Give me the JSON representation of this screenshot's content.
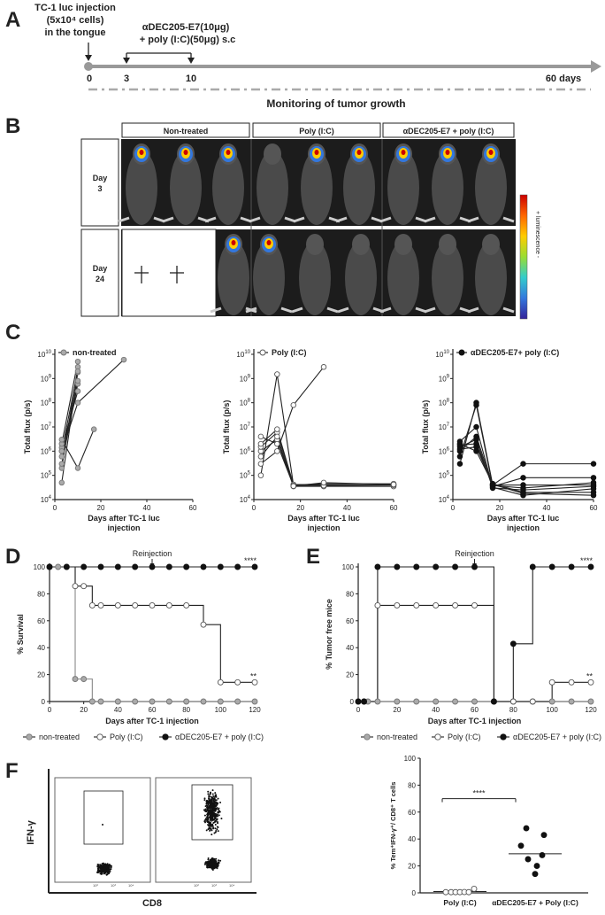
{
  "panels": {
    "A": "A",
    "B": "B",
    "C": "C",
    "D": "D",
    "E": "E",
    "F": "F"
  },
  "a": {
    "injection_lines": [
      "TC-1 luc injection",
      "(5x10⁴ cells)",
      "in the tongue"
    ],
    "treatment_lines": [
      "αDEC205-E7(10μg)",
      "+ poly (I:C)(50μg) s.c"
    ],
    "ticks": [
      "0",
      "3",
      "10",
      "60 days"
    ],
    "monitoring": "Monitoring of tumor growth"
  },
  "b": {
    "groups": [
      "Non-treated",
      "Poly (I:C)",
      "αDEC205-E7 + poly (I:C)"
    ],
    "rows": [
      [
        "Day",
        "3"
      ],
      [
        "Day",
        "24"
      ]
    ],
    "scale_label": "+ luminescence -",
    "scale_colors": [
      "#cc0000",
      "#ff6600",
      "#ffcc00",
      "#99dd33",
      "#33cccc",
      "#3377dd",
      "#332299"
    ]
  },
  "chart_data": [
    {
      "type": "line",
      "panel": "C",
      "title": "non-treated",
      "title_marker": "gray-circle",
      "xlabel": "Days after TC-1 luc injection",
      "ylabel": "Total flux (p/s)",
      "xlim": [
        0,
        60
      ],
      "xticks": [
        0,
        20,
        40,
        60
      ],
      "ylim_log10": [
        4,
        10
      ],
      "ytick_exponents": [
        4,
        5,
        6,
        7,
        8,
        9,
        10
      ],
      "yscale": "log",
      "marker": "gray-filled",
      "series": [
        {
          "x": [
            3,
            10
          ],
          "y": [
            50000,
            1800000000
          ]
        },
        {
          "x": [
            3,
            10
          ],
          "y": [
            200000,
            3000000000
          ]
        },
        {
          "x": [
            3,
            10
          ],
          "y": [
            300000,
            600000000
          ]
        },
        {
          "x": [
            3,
            10
          ],
          "y": [
            600000,
            800000000
          ]
        },
        {
          "x": [
            3,
            10
          ],
          "y": [
            1000000,
            2000000000
          ]
        },
        {
          "x": [
            3,
            10
          ],
          "y": [
            1400000,
            300000000
          ]
        },
        {
          "x": [
            3,
            10
          ],
          "y": [
            2000000,
            5000000000
          ]
        },
        {
          "x": [
            3,
            10,
            17
          ],
          "y": [
            3000000,
            200000,
            8000000
          ]
        },
        {
          "x": [
            3,
            10,
            30
          ],
          "y": [
            1000000,
            100000000,
            6000000000
          ]
        }
      ]
    },
    {
      "type": "line",
      "panel": "C",
      "title": "Poly (I:C)",
      "title_marker": "open-circle",
      "xlabel": "Days after TC-1 luc injection",
      "ylabel": "Total flux (p/s)",
      "xlim": [
        0,
        60
      ],
      "xticks": [
        0,
        20,
        40,
        60
      ],
      "ylim_log10": [
        4,
        10
      ],
      "ytick_exponents": [
        4,
        5,
        6,
        7,
        8,
        9,
        10
      ],
      "yscale": "log",
      "marker": "open",
      "series": [
        {
          "x": [
            3,
            10,
            17,
            30,
            60
          ],
          "y": [
            100000,
            1500000000,
            40000,
            40000,
            40000
          ]
        },
        {
          "x": [
            3,
            10,
            17,
            30,
            60
          ],
          "y": [
            1000000,
            3000000,
            35000,
            35000,
            35000
          ]
        },
        {
          "x": [
            3,
            10,
            17,
            30,
            60
          ],
          "y": [
            1500000,
            6000000,
            40000,
            45000,
            45000
          ]
        },
        {
          "x": [
            3,
            10,
            17,
            30,
            60
          ],
          "y": [
            2000000,
            8000000,
            42000,
            40000,
            40000
          ]
        },
        {
          "x": [
            3,
            10,
            17,
            30,
            60
          ],
          "y": [
            4000000,
            2000000,
            38000,
            38000,
            40000
          ]
        },
        {
          "x": [
            3,
            10,
            17,
            30
          ],
          "y": [
            300000,
            1000000,
            80000000,
            3000000000
          ]
        },
        {
          "x": [
            3,
            10,
            17,
            30,
            60
          ],
          "y": [
            600000,
            4000000,
            36000,
            50000,
            42000
          ]
        }
      ]
    },
    {
      "type": "line",
      "panel": "C",
      "title": "αDEC205-E7+ poly (I:C)",
      "title_marker": "black-circle",
      "xlabel": "Days after TC-1 luc injection",
      "ylabel": "Total flux (p/s)",
      "xlim": [
        0,
        60
      ],
      "xticks": [
        0,
        20,
        40,
        60
      ],
      "ylim_log10": [
        4,
        10
      ],
      "ytick_exponents": [
        4,
        5,
        6,
        7,
        8,
        9,
        10
      ],
      "yscale": "log",
      "marker": "black-filled",
      "series": [
        {
          "x": [
            3,
            10,
            17,
            30,
            60
          ],
          "y": [
            300000,
            100000000,
            40000,
            300000,
            300000
          ]
        },
        {
          "x": [
            3,
            10,
            17,
            30,
            60
          ],
          "y": [
            600000,
            80000000,
            35000,
            80000,
            80000
          ]
        },
        {
          "x": [
            3,
            10,
            17,
            30,
            60
          ],
          "y": [
            1000000,
            4000000,
            40000,
            40000,
            40000
          ]
        },
        {
          "x": [
            3,
            10,
            17,
            30,
            60
          ],
          "y": [
            1500000,
            3000000,
            30000,
            25000,
            35000
          ]
        },
        {
          "x": [
            3,
            10,
            17,
            30,
            60
          ],
          "y": [
            2000000,
            1000000,
            45000,
            20000,
            20000
          ]
        },
        {
          "x": [
            3,
            10,
            17,
            30,
            60
          ],
          "y": [
            1800000,
            2000000,
            38000,
            30000,
            50000
          ]
        },
        {
          "x": [
            3,
            10,
            17,
            30,
            60
          ],
          "y": [
            2500000,
            10000000,
            32000,
            15000,
            28000
          ]
        },
        {
          "x": [
            3,
            10,
            17,
            30,
            60
          ],
          "y": [
            1200000,
            1500000,
            42000,
            18000,
            15000
          ]
        }
      ]
    },
    {
      "type": "line",
      "panel": "D",
      "step": true,
      "xlabel": "Days after TC-1 injection",
      "ylabel": "% Survival",
      "xlim": [
        0,
        120
      ],
      "xticks": [
        0,
        20,
        40,
        60,
        80,
        100,
        120
      ],
      "ylim": [
        0,
        100
      ],
      "yticks": [
        0,
        20,
        40,
        60,
        80,
        100
      ],
      "annotation": "Reinjection",
      "annotation_x": 60,
      "series": [
        {
          "name": "non-treated",
          "style": "gray",
          "x": [
            0,
            5,
            10,
            15,
            20,
            25,
            30,
            40,
            50,
            60,
            70,
            80,
            90,
            100,
            110,
            120
          ],
          "y": [
            100,
            100,
            100,
            16.7,
            16.7,
            0,
            0,
            0,
            0,
            0,
            0,
            0,
            0,
            0,
            0,
            0
          ]
        },
        {
          "name": "Poly (I:C)",
          "style": "open",
          "x": [
            0,
            15,
            20,
            25,
            30,
            40,
            50,
            60,
            70,
            80,
            90,
            100,
            110,
            120
          ],
          "y": [
            100,
            85.7,
            85.7,
            71.4,
            71.4,
            71.4,
            71.4,
            71.4,
            71.4,
            71.4,
            57.1,
            14.3,
            14.3,
            14.3
          ]
        },
        {
          "name": "αDEC205-E7 + poly (I:C)",
          "style": "black",
          "x": [
            0,
            10,
            20,
            30,
            40,
            50,
            60,
            70,
            80,
            90,
            100,
            110,
            120
          ],
          "y": [
            100,
            100,
            100,
            100,
            100,
            100,
            100,
            100,
            100,
            100,
            100,
            100,
            100
          ]
        }
      ],
      "significance": [
        {
          "text": "****",
          "series": 2
        },
        {
          "text": "**",
          "series": 1
        }
      ]
    },
    {
      "type": "line",
      "panel": "E",
      "step": true,
      "xlabel": "Days after TC-1 injection",
      "ylabel": "% Tumor free mice",
      "xlim": [
        0,
        120
      ],
      "xticks": [
        0,
        20,
        40,
        60,
        80,
        100,
        120
      ],
      "ylim": [
        0,
        100
      ],
      "yticks": [
        0,
        20,
        40,
        60,
        80,
        100
      ],
      "annotation": "Reinjection",
      "annotation_x": 60,
      "series": [
        {
          "name": "non-treated",
          "style": "gray",
          "x": [
            0,
            3,
            5,
            10,
            20,
            30,
            40,
            50,
            60,
            70,
            80,
            90,
            100,
            110,
            120
          ],
          "y": [
            0,
            0,
            0,
            0,
            0,
            0,
            0,
            0,
            0,
            0,
            0,
            0,
            0,
            0,
            0
          ]
        },
        {
          "name": "Poly (I:C)",
          "style": "open",
          "x": [
            0,
            3,
            10,
            20,
            30,
            40,
            50,
            60,
            70,
            80,
            90,
            100,
            110,
            120
          ],
          "y": [
            0,
            0,
            71.4,
            71.4,
            71.4,
            71.4,
            71.4,
            71.4,
            0,
            0,
            0,
            14.3,
            14.3,
            14.3
          ]
        },
        {
          "name": "αDEC205-E7 + poly (I:C)",
          "style": "black",
          "x": [
            0,
            3,
            10,
            20,
            30,
            40,
            50,
            60,
            70,
            80,
            90,
            100,
            110,
            120
          ],
          "y": [
            0,
            0,
            100,
            100,
            100,
            100,
            100,
            100,
            0,
            42.9,
            100,
            100,
            100,
            100
          ]
        }
      ],
      "significance": [
        {
          "text": "****",
          "series": 2
        },
        {
          "text": "**",
          "series": 1
        }
      ]
    },
    {
      "type": "scatter",
      "panel": "F",
      "ylabel": "% Tem⁺IFN-γ⁺/ CD8⁺ T cells",
      "categories": [
        "Poly (I:C)",
        "αDEC205-E7 + Poly (I:C)"
      ],
      "ylim": [
        0,
        100
      ],
      "yticks": [
        0,
        20,
        40,
        60,
        80,
        100
      ],
      "groups": [
        {
          "name": "Poly (I:C)",
          "style": "open",
          "values": [
            0.5,
            0.5,
            0.5,
            0.5,
            0.6,
            0.5,
            3
          ],
          "median": 1
        },
        {
          "name": "αDEC205-E7 + Poly (I:C)",
          "style": "black",
          "values": [
            48,
            43,
            35,
            28,
            25,
            20,
            14
          ],
          "median": 29
        }
      ],
      "significance": "****"
    }
  ],
  "legend_de": [
    "non-treated",
    "Poly (I:C)",
    "αDEC205-E7 + poly (I:C)"
  ],
  "flow": {
    "ylabel": "IFN-γ",
    "xlabel": "CD8",
    "tick_labels": [
      "10⁰",
      "10²",
      "10³",
      "10⁴"
    ]
  }
}
